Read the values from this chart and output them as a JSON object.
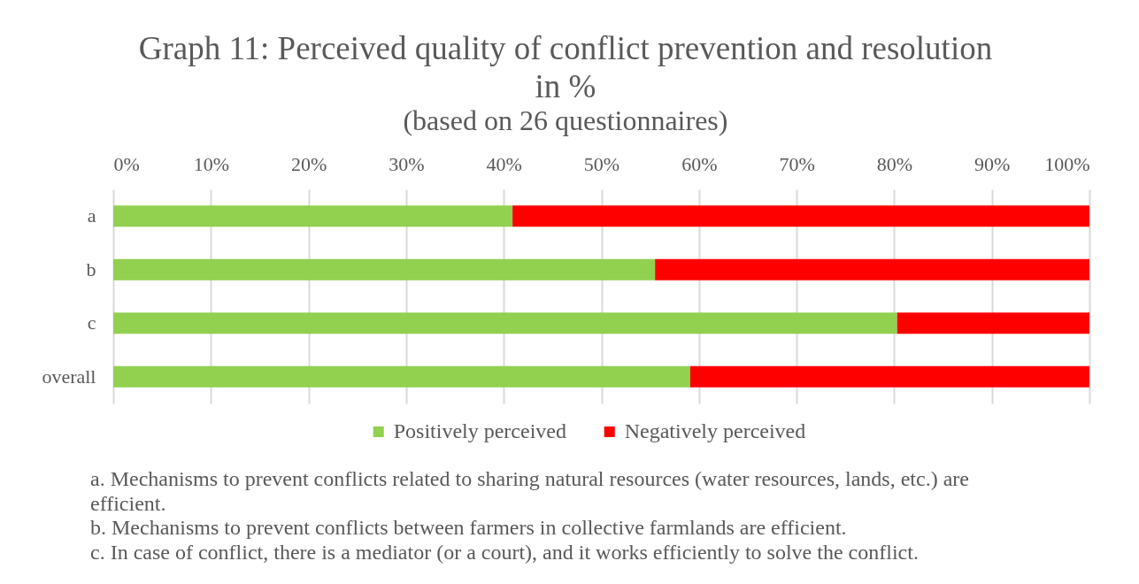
{
  "chart_data": {
    "type": "bar",
    "orientation": "horizontal",
    "stacked": true,
    "title": "Graph 11: Perceived quality of conflict prevention and resolution in %",
    "subtitle": "(based on 26 questionnaires)",
    "categories": [
      "a",
      "b",
      "c",
      "overall"
    ],
    "series": [
      {
        "name": "Positively perceived",
        "color": "#92d050",
        "values": [
          40.9,
          55.5,
          80.3,
          59.1
        ]
      },
      {
        "name": "Negatively perceived",
        "color": "#ff0000",
        "values": [
          59.1,
          44.5,
          19.7,
          40.9
        ]
      }
    ],
    "xlim": [
      0,
      100
    ],
    "xticks": [
      {
        "value": 0,
        "label": "0%"
      },
      {
        "value": 10,
        "label": "10%"
      },
      {
        "value": 20,
        "label": "20%"
      },
      {
        "value": 30,
        "label": "30%"
      },
      {
        "value": 40,
        "label": "40%"
      },
      {
        "value": 50,
        "label": "50%"
      },
      {
        "value": 60,
        "label": "60%"
      },
      {
        "value": 70,
        "label": "70%"
      },
      {
        "value": 80,
        "label": "80%"
      },
      {
        "value": 90,
        "label": "90%"
      },
      {
        "value": 100,
        "label": "100%"
      }
    ],
    "grid": "x",
    "legend": "bottom",
    "annotations": [
      "a. Mechanisms to prevent conflicts related to sharing natural resources (water resources, lands, etc.) are efficient.",
      "b. Mechanisms to prevent conflicts between farmers in collective farmlands are efficient.",
      "c. In case of conflict, there is a mediator (or a court), and it works efficiently to solve the conflict."
    ]
  }
}
